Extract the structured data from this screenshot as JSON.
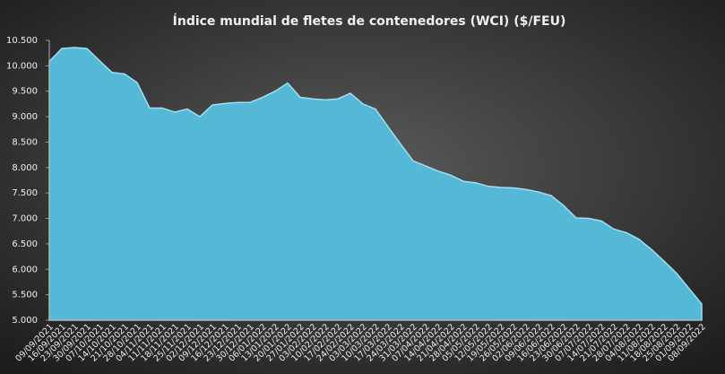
{
  "chart_data": {
    "type": "area",
    "title": "Índice mundial de fletes de contenedores (WCI) ($/FEU)",
    "categories": [
      "09/09/2021",
      "16/09/2021",
      "23/09/2021",
      "30/09/2021",
      "07/10/2021",
      "14/10/2021",
      "21/10/2021",
      "28/10/2021",
      "04/11/2021",
      "11/11/2021",
      "18/11/2021",
      "25/11/2021",
      "02/12/2021",
      "09/12/2021",
      "16/12/2021",
      "23/12/2021",
      "30/12/2021",
      "06/01/2022",
      "13/01/2022",
      "20/01/2022",
      "27/01/2022",
      "03/02/2022",
      "10/02/2022",
      "17/02/2022",
      "24/02/2022",
      "03/03/2022",
      "10/03/2022",
      "17/03/2022",
      "24/03/2022",
      "31/03/2022",
      "07/04/2022",
      "14/04/2022",
      "21/04/2022",
      "28/04/2022",
      "05/05/2022",
      "12/05/2022",
      "19/05/2022",
      "26/05/2022",
      "02/06/2022",
      "09/06/2022",
      "16/06/2022",
      "23/06/2022",
      "30/06/2022",
      "07/07/2022",
      "14/07/2022",
      "21/07/2022",
      "28/07/2022",
      "04/08/2022",
      "11/08/2022",
      "18/08/2022",
      "25/08/2022",
      "01/09/2022",
      "08/09/2022"
    ],
    "values": [
      10084,
      10340,
      10360,
      10340,
      10100,
      9870,
      9840,
      9670,
      9170,
      9170,
      9090,
      9150,
      9000,
      9230,
      9260,
      9280,
      9280,
      9380,
      9500,
      9660,
      9380,
      9350,
      9330,
      9350,
      9460,
      9250,
      9150,
      8800,
      8460,
      8130,
      8030,
      7930,
      7850,
      7730,
      7700,
      7630,
      7610,
      7600,
      7570,
      7520,
      7450,
      7250,
      7010,
      7000,
      6950,
      6790,
      6720,
      6590,
      6390,
      6160,
      5920,
      5620,
      5320
    ],
    "color": "#55b8d6",
    "ylim": [
      5000,
      10500
    ],
    "yticks": [
      {
        "value": 5000,
        "label": "5.000"
      },
      {
        "value": 5500,
        "label": "5.500"
      },
      {
        "value": 6000,
        "label": "6.000"
      },
      {
        "value": 6500,
        "label": "6.500"
      },
      {
        "value": 7000,
        "label": "7.000"
      },
      {
        "value": 7500,
        "label": "7.500"
      },
      {
        "value": 8000,
        "label": "8.000"
      },
      {
        "value": 8500,
        "label": "8.500"
      },
      {
        "value": 9000,
        "label": "9.000"
      },
      {
        "value": 9500,
        "label": "9.500"
      },
      {
        "value": 10000,
        "label": "10.000"
      },
      {
        "value": 10500,
        "label": "10.500"
      }
    ],
    "grid": false
  }
}
